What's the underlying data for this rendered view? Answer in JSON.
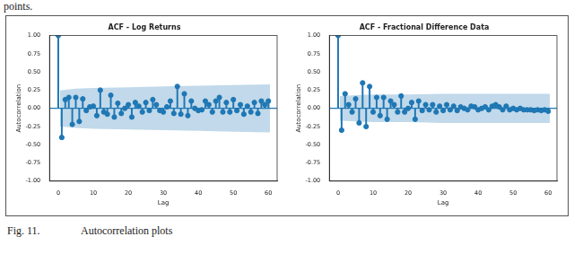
{
  "page_text": "points.",
  "caption": {
    "label": "Fig. 11.",
    "text": "Autocorrelation plots"
  },
  "chart_data": [
    {
      "type": "stem",
      "title": "ACF - Log Returns",
      "x_label": "Lag",
      "y_label": "Autocorrelation",
      "color": "#1f77b4",
      "grid": false,
      "x": [
        0,
        1,
        2,
        3,
        4,
        5,
        6,
        7,
        8,
        9,
        10,
        11,
        12,
        13,
        14,
        15,
        16,
        17,
        18,
        19,
        20,
        21,
        22,
        23,
        24,
        25,
        26,
        27,
        28,
        29,
        30,
        31,
        32,
        33,
        34,
        35,
        36,
        37,
        38,
        39,
        40,
        41,
        42,
        43,
        44,
        45,
        46,
        47,
        48,
        49,
        50,
        51,
        52,
        53,
        54,
        55,
        56,
        57,
        58,
        59,
        60
      ],
      "values": [
        1.0,
        -0.4,
        0.12,
        0.15,
        -0.22,
        0.15,
        -0.18,
        0.13,
        -0.03,
        0.02,
        0.03,
        -0.1,
        0.25,
        -0.05,
        -0.08,
        0.18,
        -0.12,
        0.07,
        -0.07,
        0.0,
        0.05,
        -0.12,
        0.08,
        0.03,
        -0.05,
        0.08,
        -0.03,
        0.12,
        0.05,
        -0.03,
        -0.05,
        0.02,
        0.1,
        -0.07,
        0.3,
        -0.08,
        0.2,
        -0.1,
        0.1,
        0.0,
        -0.03,
        -0.02,
        0.1,
        0.05,
        -0.05,
        0.1,
        0.15,
        -0.05,
        0.08,
        -0.05,
        0.12,
        -0.03,
        0.05,
        -0.08,
        0.03,
        -0.05,
        0.08,
        -0.07,
        0.1,
        0.05,
        0.1
      ],
      "confidence_band": {
        "x": [
          0.5,
          1,
          5,
          10,
          20,
          30,
          40,
          50,
          60.5
        ],
        "upper": [
          0.25,
          0.25,
          0.27,
          0.28,
          0.29,
          0.3,
          0.31,
          0.32,
          0.33
        ],
        "lower": [
          -0.25,
          -0.25,
          -0.27,
          -0.28,
          -0.29,
          -0.3,
          -0.31,
          -0.32,
          -0.33
        ]
      },
      "xlim": [
        -2.5,
        62.5
      ],
      "xticks": [
        0,
        10,
        20,
        30,
        40,
        50,
        60
      ],
      "ylim": [
        -1,
        1
      ],
      "yticks": [
        {
          "value": -1,
          "label": "-1.00"
        },
        {
          "value": -0.75,
          "label": "-0.75"
        },
        {
          "value": -0.5,
          "label": "-0.50"
        },
        {
          "value": -0.25,
          "label": "-0.25"
        },
        {
          "value": 0,
          "label": "0.00"
        },
        {
          "value": 0.25,
          "label": "0.25"
        },
        {
          "value": 0.5,
          "label": "0.50"
        },
        {
          "value": 0.75,
          "label": "0.75"
        },
        {
          "value": 1,
          "label": "1.00"
        }
      ]
    },
    {
      "type": "stem",
      "title": "ACF - Fractional Difference Data",
      "x_label": "Lag",
      "y_label": "Autocorrelation",
      "color": "#1f77b4",
      "grid": false,
      "x": [
        0,
        1,
        2,
        3,
        4,
        5,
        6,
        7,
        8,
        9,
        10,
        11,
        12,
        13,
        14,
        15,
        16,
        17,
        18,
        19,
        20,
        21,
        22,
        23,
        24,
        25,
        26,
        27,
        28,
        29,
        30,
        31,
        32,
        33,
        34,
        35,
        36,
        37,
        38,
        39,
        40,
        41,
        42,
        43,
        44,
        45,
        46,
        47,
        48,
        49,
        50,
        51,
        52,
        53,
        54,
        55,
        56,
        57,
        58,
        59,
        60
      ],
      "values": [
        1.0,
        -0.3,
        0.2,
        0.05,
        -0.05,
        0.13,
        -0.2,
        0.35,
        -0.25,
        0.3,
        -0.05,
        0.15,
        -0.1,
        0.15,
        -0.15,
        0.1,
        0.05,
        -0.05,
        0.17,
        -0.05,
        0.0,
        0.08,
        -0.15,
        0.1,
        -0.03,
        0.05,
        -0.02,
        0.05,
        -0.05,
        0.03,
        -0.03,
        0.05,
        -0.02,
        0.03,
        -0.03,
        0.02,
        0.0,
        -0.02,
        0.03,
        0.02,
        -0.02,
        0.0,
        0.02,
        -0.02,
        0.03,
        0.05,
        0.02,
        -0.02,
        0.03,
        -0.02,
        0.0,
        -0.02,
        0.0,
        -0.02,
        -0.02,
        -0.02,
        -0.03,
        -0.02,
        -0.03,
        -0.02,
        -0.04
      ],
      "confidence_band": {
        "x": [
          0.5,
          1,
          5,
          10,
          20,
          30,
          40,
          50,
          60.5
        ],
        "upper": [
          0.17,
          0.17,
          0.18,
          0.19,
          0.19,
          0.2,
          0.2,
          0.2,
          0.2
        ],
        "lower": [
          -0.17,
          -0.17,
          -0.18,
          -0.19,
          -0.19,
          -0.2,
          -0.2,
          -0.2,
          -0.2
        ]
      },
      "xlim": [
        -2.5,
        62.5
      ],
      "xticks": [
        0,
        10,
        20,
        30,
        40,
        50,
        60
      ],
      "ylim": [
        -1,
        1
      ],
      "yticks": [
        {
          "value": -1,
          "label": "-1.00"
        },
        {
          "value": -0.75,
          "label": "-0.75"
        },
        {
          "value": -0.5,
          "label": "-0.50"
        },
        {
          "value": -0.25,
          "label": "-0.25"
        },
        {
          "value": 0,
          "label": "0.00"
        },
        {
          "value": 0.25,
          "label": "0.25"
        },
        {
          "value": 0.5,
          "label": "0.50"
        },
        {
          "value": 0.75,
          "label": "0.75"
        },
        {
          "value": 1,
          "label": "1.00"
        }
      ]
    }
  ]
}
